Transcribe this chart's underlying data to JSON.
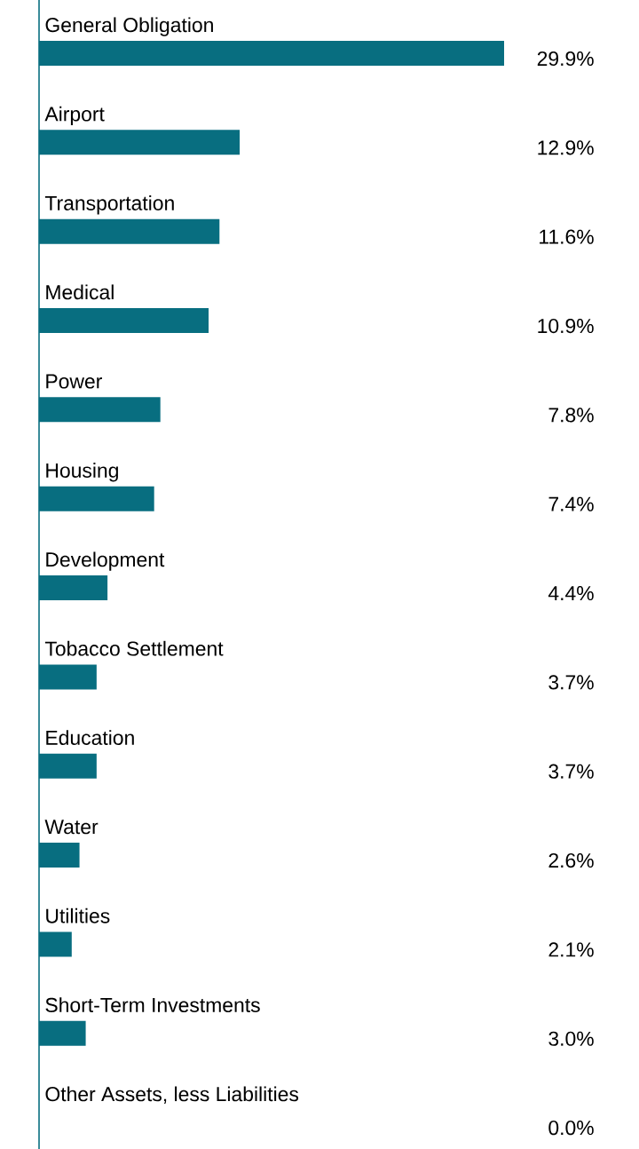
{
  "chart_data": {
    "type": "bar",
    "orientation": "horizontal",
    "color": "#086e80",
    "categories": [
      "General Obligation",
      "Airport",
      "Transportation",
      "Medical",
      "Power",
      "Housing",
      "Development",
      "Tobacco Settlement",
      "Education",
      "Water",
      "Utilities",
      "Short-Term Investments",
      "Other Assets, less Liabilities"
    ],
    "values": [
      29.9,
      12.9,
      11.6,
      10.9,
      7.8,
      7.4,
      4.4,
      3.7,
      3.7,
      2.6,
      2.1,
      3.0,
      0.0
    ],
    "value_labels": [
      "29.9%",
      "12.9%",
      "11.6%",
      "10.9%",
      "7.8%",
      "7.4%",
      "4.4%",
      "3.7%",
      "3.7%",
      "2.6%",
      "2.1%",
      "3.0%",
      "0.0%"
    ]
  }
}
